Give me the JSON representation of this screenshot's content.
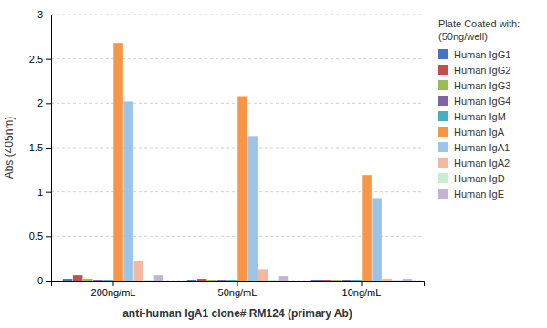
{
  "chart_data": {
    "type": "bar",
    "categories": [
      "200ng/mL",
      "50ng/mL",
      "10ng/mL"
    ],
    "series": [
      {
        "name": "Human IgG1",
        "color": "#4472C4",
        "values": [
          0.02,
          0.01,
          0.01
        ]
      },
      {
        "name": "Human IgG2",
        "color": "#C0504D",
        "values": [
          0.06,
          0.02,
          0.01
        ]
      },
      {
        "name": "Human IgG3",
        "color": "#9BBB59",
        "values": [
          0.02,
          0.01,
          0.01
        ]
      },
      {
        "name": "Human IgG4",
        "color": "#8064A2",
        "values": [
          0.01,
          0.01,
          0.01
        ]
      },
      {
        "name": "Human IgM",
        "color": "#4BACC6",
        "values": [
          0.01,
          0.01,
          0.01
        ]
      },
      {
        "name": "Human IgA",
        "color": "#F79646",
        "values": [
          2.68,
          2.08,
          1.19
        ]
      },
      {
        "name": "Human IgA1",
        "color": "#9DC3E6",
        "values": [
          2.02,
          1.63,
          0.93
        ]
      },
      {
        "name": "Human IgA2",
        "color": "#F2B8A0",
        "values": [
          0.22,
          0.13,
          0.02
        ]
      },
      {
        "name": "Human IgD",
        "color": "#C6EFCE",
        "values": [
          0.01,
          0.01,
          0.01
        ]
      },
      {
        "name": "Human IgE",
        "color": "#C5B3D5",
        "values": [
          0.06,
          0.05,
          0.02
        ]
      }
    ],
    "xlabel": "anti-human IgA1 clone# RM124 (primary Ab)",
    "ylabel": "Abs (405nm)",
    "legend_title": "Plate Coated with:\n(50ng/well)",
    "legend": "right",
    "ylim": [
      0,
      3
    ],
    "yticks": [
      0,
      0.5,
      1,
      1.5,
      2,
      2.5,
      3
    ],
    "grid": true
  }
}
